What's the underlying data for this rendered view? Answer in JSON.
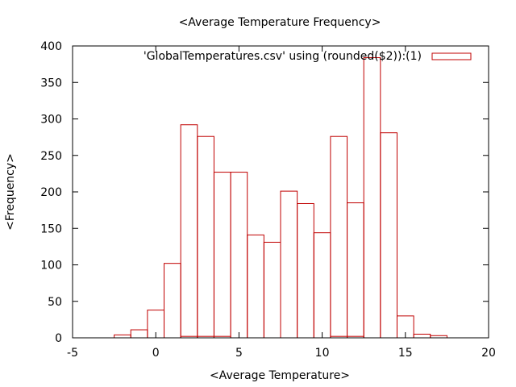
{
  "chart_data": {
    "type": "bar",
    "title": "<Average Temperature Frequency>",
    "xlabel": "<Average Temperature>",
    "ylabel": "<Frequency>",
    "xlim": [
      -5,
      20
    ],
    "ylim": [
      0,
      400
    ],
    "xticks": [
      "-5",
      "0",
      "5",
      "10",
      "15",
      "20"
    ],
    "yticks": [
      "0",
      "50",
      "100",
      "150",
      "200",
      "250",
      "300",
      "350",
      "400"
    ],
    "grid": false,
    "legend_position": "top-right",
    "bar_color": "#c00000",
    "bin_width": 1,
    "series": [
      {
        "name": "'GlobalTemperatures.csv' using (rounded($2)):(1)",
        "bins": [
          {
            "x": -2,
            "y": 4
          },
          {
            "x": -1,
            "y": 11
          },
          {
            "x": 0,
            "y": 38
          },
          {
            "x": 1,
            "y": 102
          },
          {
            "x": 2,
            "y": 292
          },
          {
            "x": 3,
            "y": 276
          },
          {
            "x": 4,
            "y": 227
          },
          {
            "x": 5,
            "y": 227
          },
          {
            "x": 6,
            "y": 141
          },
          {
            "x": 7,
            "y": 131
          },
          {
            "x": 8,
            "y": 201
          },
          {
            "x": 9,
            "y": 184
          },
          {
            "x": 10,
            "y": 144
          },
          {
            "x": 11,
            "y": 276
          },
          {
            "x": 12,
            "y": 185
          },
          {
            "x": 13,
            "y": 384
          },
          {
            "x": 14,
            "y": 281
          },
          {
            "x": 15,
            "y": 30
          },
          {
            "x": 16,
            "y": 5
          },
          {
            "x": 17,
            "y": 3
          }
        ]
      },
      {
        "name": "",
        "bins": [
          {
            "x": 2,
            "y": 2
          },
          {
            "x": 3,
            "y": 2
          },
          {
            "x": 4,
            "y": 2
          },
          {
            "x": 11,
            "y": 2
          },
          {
            "x": 12,
            "y": 2
          }
        ]
      }
    ]
  }
}
